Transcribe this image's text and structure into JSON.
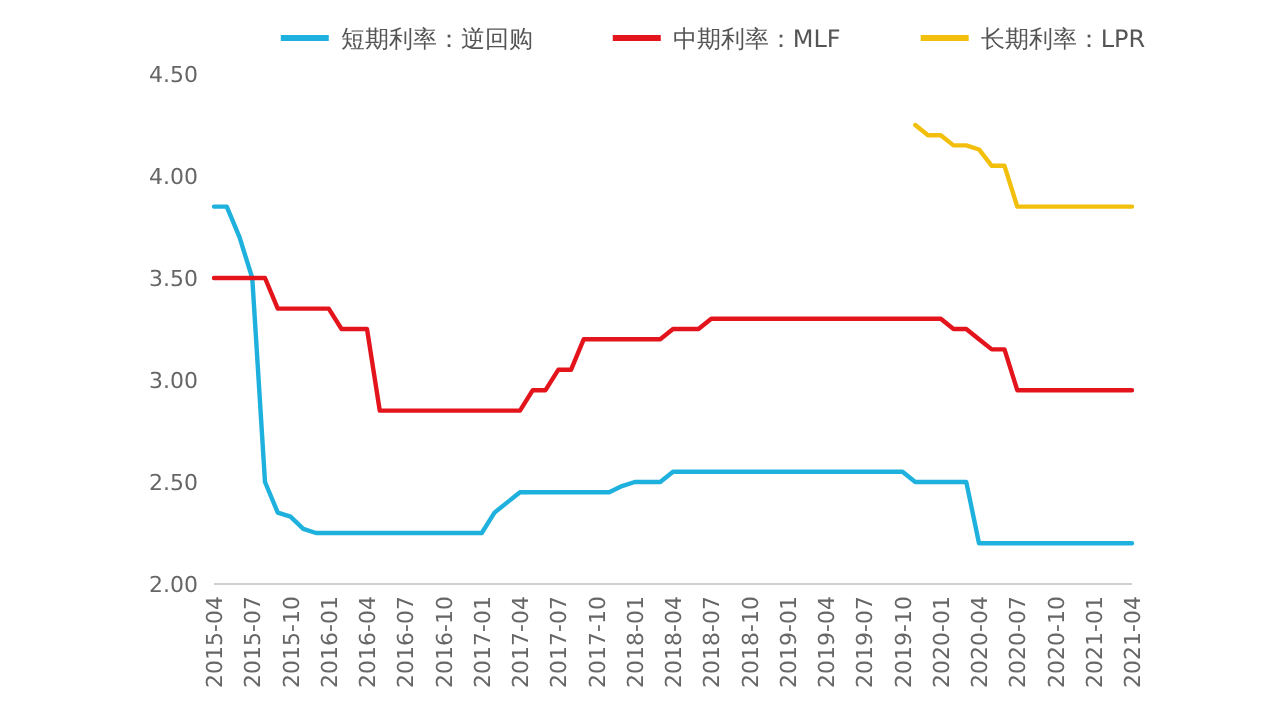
{
  "chart_data": {
    "type": "line",
    "legend": "top",
    "line_style": "solid",
    "marker": "none",
    "categories": [
      "2015-04",
      null,
      null,
      "2015-07",
      null,
      null,
      "2015-10",
      null,
      null,
      "2016-01",
      null,
      null,
      "2016-04",
      null,
      null,
      "2016-07",
      null,
      null,
      "2016-10",
      null,
      null,
      "2017-01",
      null,
      null,
      "2017-04",
      null,
      null,
      "2017-07",
      null,
      null,
      "2017-10",
      null,
      null,
      "2018-01",
      null,
      null,
      "2018-04",
      null,
      null,
      "2018-07",
      null,
      null,
      "2018-10",
      null,
      null,
      "2019-01",
      null,
      null,
      "2019-04",
      null,
      null,
      "2019-07",
      null,
      null,
      "2019-10",
      null,
      null,
      "2020-01",
      null,
      null,
      "2020-04",
      null,
      null,
      "2020-07",
      null,
      null,
      "2020-10",
      null,
      null,
      "2021-01",
      null,
      null,
      "2021-04"
    ],
    "ylim": [
      2,
      4.5
    ],
    "yticks": [
      {
        "value": 2,
        "label": "2.00"
      },
      {
        "value": 2.5,
        "label": "2.50"
      },
      {
        "value": 3,
        "label": "3.00"
      },
      {
        "value": 3.5,
        "label": "3.50"
      },
      {
        "value": 4,
        "label": "4.00"
      },
      {
        "value": 4.5,
        "label": "4.50"
      }
    ],
    "series": [
      {
        "name": "短期利率：逆回购",
        "color": "#1fb1dd",
        "values": [
          3.85,
          3.85,
          3.7,
          3.5,
          2.5,
          2.35,
          2.33,
          2.27,
          2.25,
          2.25,
          2.25,
          2.25,
          2.25,
          2.25,
          2.25,
          2.25,
          2.25,
          2.25,
          2.25,
          2.25,
          2.25,
          2.25,
          2.35,
          2.4,
          2.45,
          2.45,
          2.45,
          2.45,
          2.45,
          2.45,
          2.45,
          2.45,
          2.48,
          2.5,
          2.5,
          2.5,
          2.55,
          2.55,
          2.55,
          2.55,
          2.55,
          2.55,
          2.55,
          2.55,
          2.55,
          2.55,
          2.55,
          2.55,
          2.55,
          2.55,
          2.55,
          2.55,
          2.55,
          2.55,
          2.55,
          2.5,
          2.5,
          2.5,
          2.5,
          2.5,
          2.2,
          2.2,
          2.2,
          2.2,
          2.2,
          2.2,
          2.2,
          2.2,
          2.2,
          2.2,
          2.2,
          2.2,
          2.2
        ]
      },
      {
        "name": "中期利率：MLF",
        "color": "#e3141c",
        "values": [
          3.5,
          3.5,
          3.5,
          3.5,
          3.5,
          3.35,
          3.35,
          3.35,
          3.35,
          3.35,
          3.25,
          3.25,
          3.25,
          2.85,
          2.85,
          2.85,
          2.85,
          2.85,
          2.85,
          2.85,
          2.85,
          2.85,
          2.85,
          2.85,
          2.85,
          2.95,
          2.95,
          3.05,
          3.05,
          3.2,
          3.2,
          3.2,
          3.2,
          3.2,
          3.2,
          3.2,
          3.25,
          3.25,
          3.25,
          3.3,
          3.3,
          3.3,
          3.3,
          3.3,
          3.3,
          3.3,
          3.3,
          3.3,
          3.3,
          3.3,
          3.3,
          3.3,
          3.3,
          3.3,
          3.3,
          3.3,
          3.3,
          3.3,
          3.25,
          3.25,
          3.2,
          3.15,
          3.15,
          2.95,
          2.95,
          2.95,
          2.95,
          2.95,
          2.95,
          2.95,
          2.95,
          2.95,
          2.95
        ]
      },
      {
        "name": "长期利率：LPR",
        "color": "#f2c00c",
        "values": [
          null,
          null,
          null,
          null,
          null,
          null,
          null,
          null,
          null,
          null,
          null,
          null,
          null,
          null,
          null,
          null,
          null,
          null,
          null,
          null,
          null,
          null,
          null,
          null,
          null,
          null,
          null,
          null,
          null,
          null,
          null,
          null,
          null,
          null,
          null,
          null,
          null,
          null,
          null,
          null,
          null,
          null,
          null,
          null,
          null,
          null,
          null,
          null,
          null,
          null,
          null,
          null,
          null,
          null,
          null,
          4.25,
          4.2,
          4.2,
          4.15,
          4.15,
          4.13,
          4.05,
          4.05,
          3.85,
          3.85,
          3.85,
          3.85,
          3.85,
          3.85,
          3.85,
          3.85,
          3.85,
          3.85
        ]
      }
    ]
  }
}
